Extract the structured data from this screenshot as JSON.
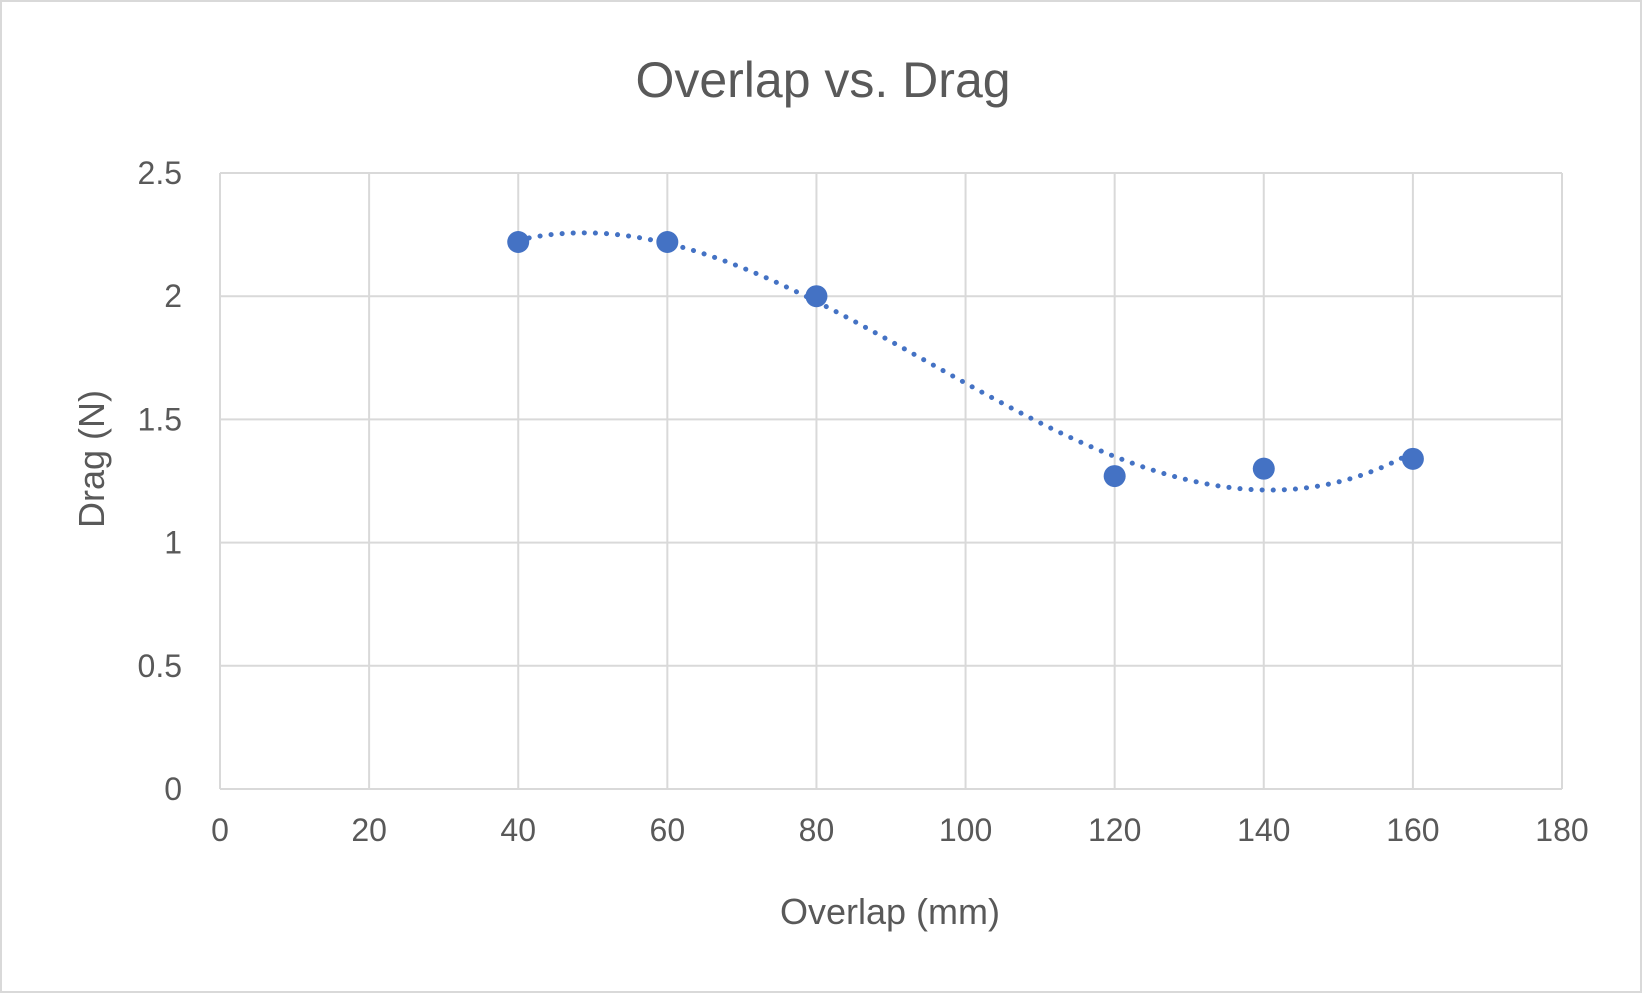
{
  "chart_data": {
    "type": "scatter",
    "title": "Overlap vs. Drag",
    "xlabel": "Overlap (mm)",
    "ylabel": "Drag (N)",
    "xlim": [
      0,
      180
    ],
    "ylim": [
      0,
      2.5
    ],
    "x_ticks": [
      0,
      20,
      40,
      60,
      80,
      100,
      120,
      140,
      160,
      180
    ],
    "y_ticks": [
      0,
      0.5,
      1,
      1.5,
      2,
      2.5
    ],
    "grid": true,
    "legend": "none",
    "series": [
      {
        "x": [
          40,
          60,
          80,
          120,
          140,
          160
        ],
        "y": [
          2.22,
          2.22,
          2.0,
          1.27,
          1.3,
          1.34
        ],
        "color": "#4472c4",
        "marker": "circle",
        "trendline": "polynomial",
        "trendline_style": "dotted"
      }
    ]
  },
  "colors": {
    "text": "#595959",
    "grid": "#d9d9d9",
    "series": "#4472c4"
  }
}
